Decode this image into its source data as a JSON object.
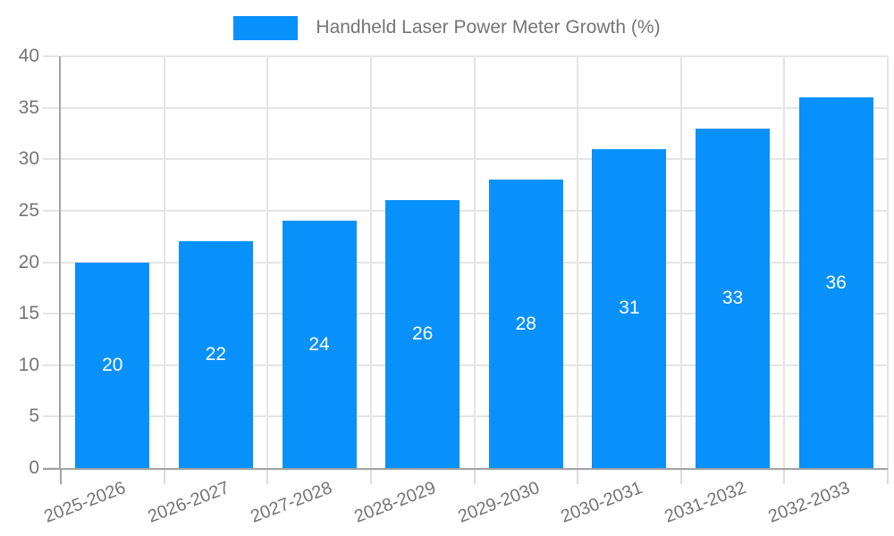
{
  "chart_data": {
    "type": "bar",
    "title": "Handheld Laser Power Meter Growth (%)",
    "categories": [
      "2025-2026",
      "2026-2027",
      "2027-2028",
      "2028-2029",
      "2029-2030",
      "2030-2031",
      "2031-2032",
      "2032-2033"
    ],
    "values": [
      20,
      22,
      24,
      26,
      28,
      31,
      33,
      36
    ],
    "series": [
      {
        "name": "Handheld Laser Power Meter Growth (%)",
        "values": [
          20,
          22,
          24,
          26,
          28,
          31,
          33,
          36
        ]
      }
    ],
    "xlabel": "",
    "ylabel": "",
    "ylim": [
      0,
      40
    ],
    "yticks": [
      0,
      5,
      10,
      15,
      20,
      25,
      30,
      35,
      40
    ],
    "grid": "on",
    "legend_position": "top-center",
    "bar_labels_shown": true,
    "colors": {
      "bar": "#0991fb",
      "bar_value_text": "#ffffff",
      "axis_text": "#757575",
      "gridline": "#e4e4e4",
      "axis_line": "#a3a3a3",
      "background": "#ffffff"
    }
  }
}
